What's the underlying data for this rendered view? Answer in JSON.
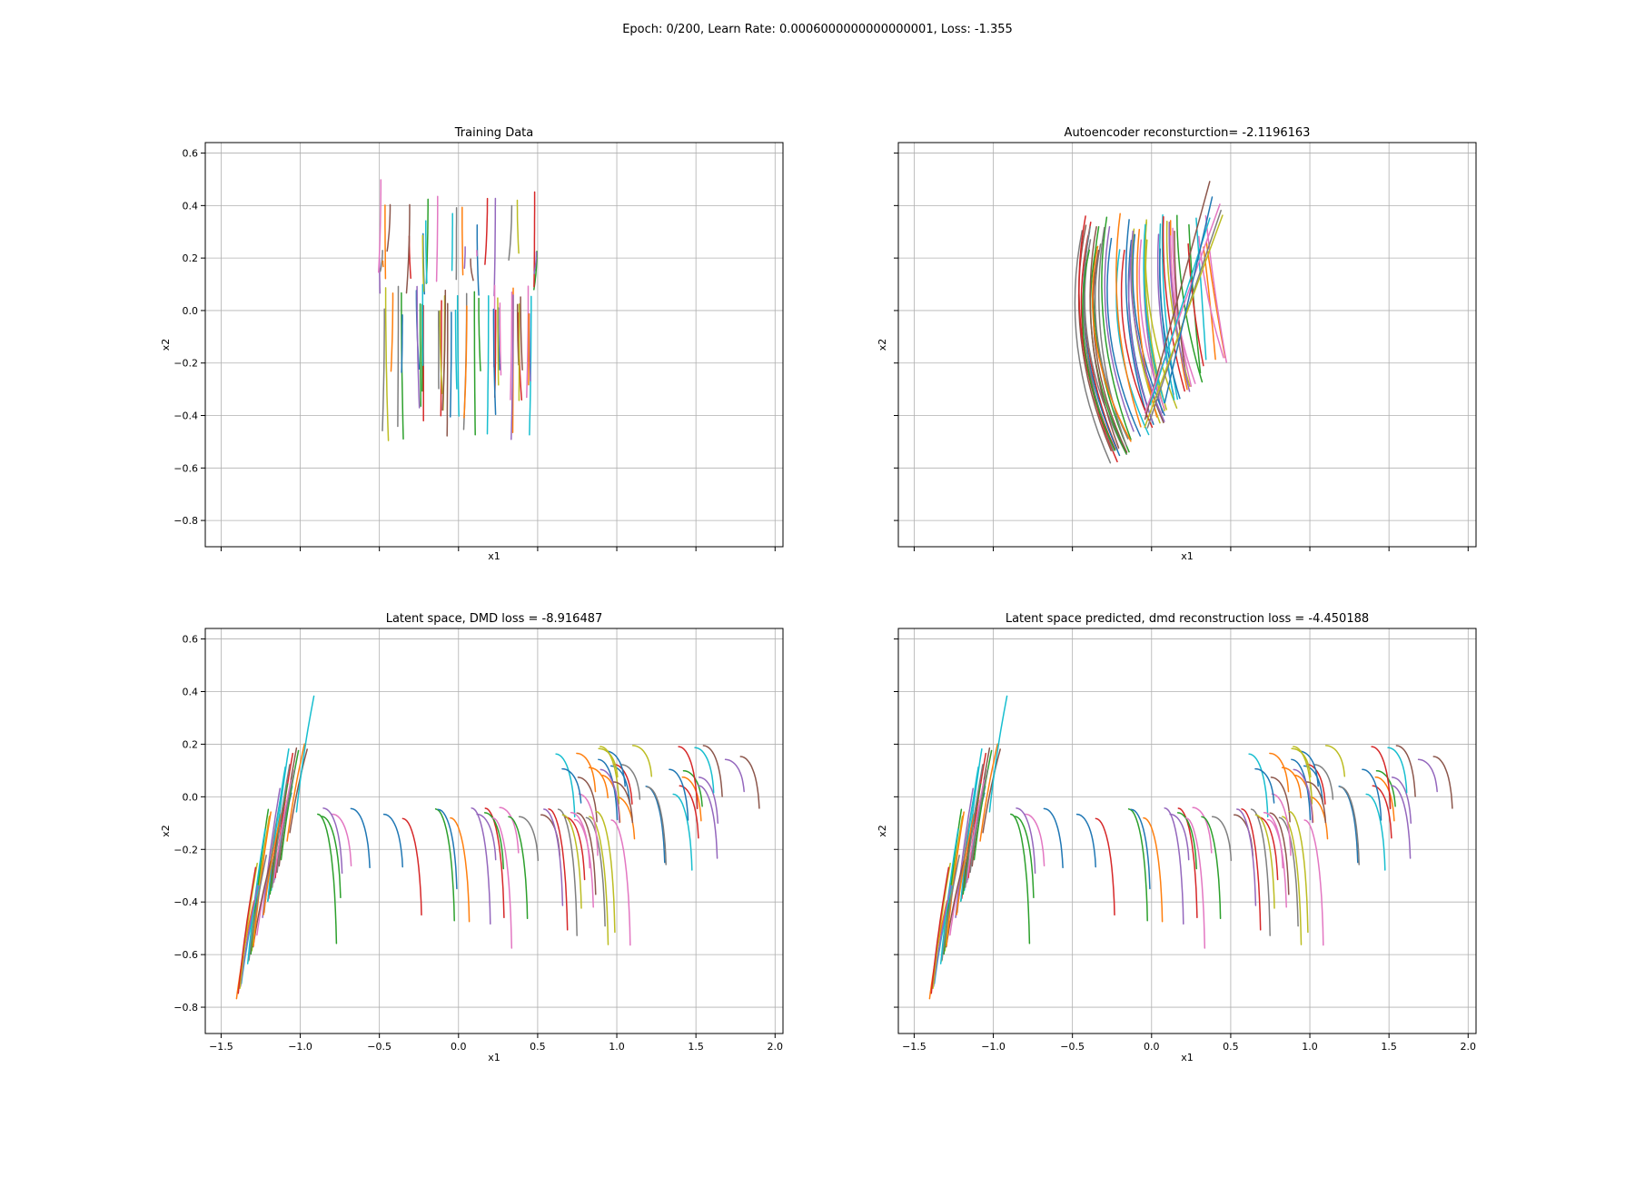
{
  "figure": {
    "suptitle": "Epoch: 0/200, Learn Rate: 0.0006000000000000001, Loss: -1.355"
  },
  "palette": [
    "#1f77b4",
    "#ff7f0e",
    "#2ca02c",
    "#d62728",
    "#9467bd",
    "#8c564b",
    "#e377c2",
    "#7f7f7f",
    "#bcbd22",
    "#17becf"
  ],
  "chart_data": [
    {
      "type": "line",
      "title": "Training Data",
      "xlabel": "x1",
      "ylabel": "x2",
      "xlim": [
        -1.6,
        2.05
      ],
      "ylim": [
        -0.9,
        0.64
      ],
      "xticks": [
        -1.5,
        -1.0,
        -0.5,
        0.0,
        0.5,
        1.0,
        1.5,
        2.0
      ],
      "yticks": [
        -0.8,
        -0.6,
        -0.4,
        -0.2,
        0.0,
        0.2,
        0.4,
        0.6
      ],
      "xticklabels_visible": false,
      "yticklabels_visible": true,
      "grid": true,
      "series_description": "many short vertical trajectories, x in [-0.5, 0.5], upper group from ~0.45 down to ~0.1, lower group from ~0.1 down to ~-0.5"
    },
    {
      "type": "line",
      "title": "Autoencoder reconsturction= -2.1196163",
      "xlabel": "x1",
      "ylabel": "x2",
      "xlim": [
        -1.6,
        2.05
      ],
      "ylim": [
        -0.9,
        0.64
      ],
      "xticks": [
        -1.5,
        -1.0,
        -0.5,
        0.0,
        0.5,
        1.0,
        1.5,
        2.0
      ],
      "yticks": [
        -0.8,
        -0.6,
        -0.4,
        -0.2,
        0.0,
        0.2,
        0.4,
        0.6
      ],
      "xticklabels_visible": false,
      "yticklabels_visible": false,
      "grid": true,
      "series_description": "curved trajectories between x -0.5 and 0.5 sweeping from top (~0.35) down to bottom (~-0.55), with a few diagonal strokes to ~0.55"
    },
    {
      "type": "line",
      "title": "Latent space, DMD loss = -8.916487",
      "xlabel": "x1",
      "ylabel": "x2",
      "xlim": [
        -1.6,
        2.05
      ],
      "ylim": [
        -0.9,
        0.64
      ],
      "xticks": [
        -1.5,
        -1.0,
        -0.5,
        0.0,
        0.5,
        1.0,
        1.5,
        2.0
      ],
      "yticks": [
        -0.8,
        -0.6,
        -0.4,
        -0.2,
        0.0,
        0.2,
        0.4,
        0.6
      ],
      "xticklabels_visible": true,
      "yticklabels_visible": true,
      "grid": true,
      "series_description": "arc-shaped trajectories forming a band from (-1.4,-0.8) rising to (-1.2,0.0), running along y~-0.05 to x~1.0 and ending in arcs near (1.6,0.2)"
    },
    {
      "type": "line",
      "title": "Latent space predicted, dmd reconstruction loss = -4.450188",
      "xlabel": "x1",
      "ylabel": "x2",
      "xlim": [
        -1.6,
        2.05
      ],
      "ylim": [
        -0.9,
        0.64
      ],
      "xticks": [
        -1.5,
        -1.0,
        -0.5,
        0.0,
        0.5,
        1.0,
        1.5,
        2.0
      ],
      "yticks": [
        -0.8,
        -0.6,
        -0.4,
        -0.2,
        0.0,
        0.2,
        0.4,
        0.6
      ],
      "xticklabels_visible": true,
      "yticklabels_visible": false,
      "grid": true,
      "series_description": "arc-shaped trajectories forming a band from (-1.4,-0.8) rising to (-1.2,0.0), running along y~-0.05 to x~1.0 and ending in arcs near (1.6,0.2)"
    }
  ]
}
